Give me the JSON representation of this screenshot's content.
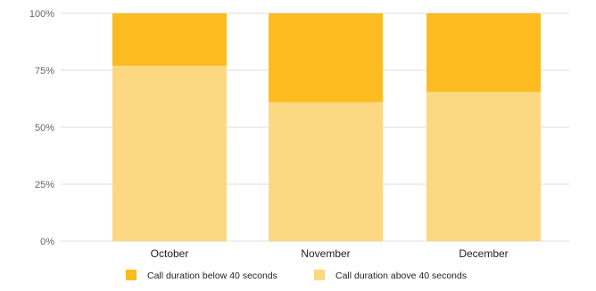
{
  "chart_data": {
    "type": "bar",
    "stacked": true,
    "categories": [
      "October",
      "November",
      "December"
    ],
    "series": [
      {
        "name": "Call duration above 40 seconds",
        "color": "#FDD882",
        "values": [
          77,
          61,
          65.5
        ]
      },
      {
        "name": "Call duration below 40 seconds",
        "color": "#FCBC1F",
        "values": [
          23,
          39,
          34.5
        ]
      }
    ],
    "yticks": [
      "0%",
      "25%",
      "50%",
      "75%",
      "100%"
    ],
    "ylim": [
      0,
      100
    ],
    "grid": true,
    "legend_position": "bottom",
    "title": "",
    "xlabel": "",
    "ylabel": ""
  }
}
